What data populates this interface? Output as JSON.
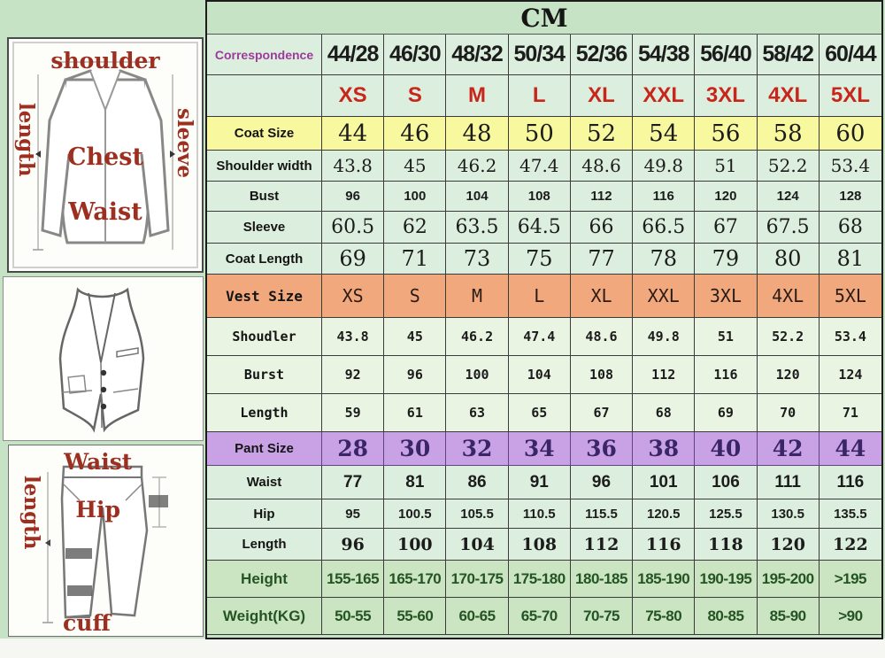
{
  "diagrams": {
    "jacket": {
      "labels": {
        "shoulder": "shoulder",
        "length": "length",
        "sleeve": "sleeve",
        "chest": "Chest",
        "waist": "Waist"
      }
    },
    "vest": {
      "labels": {}
    },
    "pants": {
      "labels": {
        "waist": "Waist",
        "length": "length",
        "hip": "Hip",
        "cuff": "cuff"
      }
    }
  },
  "colors": {
    "page_green": "#c7e3c5",
    "coat_header_bg": "#f8f89e",
    "vest_header_bg": "#f1a87c",
    "pant_header_bg": "#c9a2e6",
    "body_rows_bg": "#cbe4c1",
    "size_letter_red": "#c8251b",
    "correspondence_purple": "#9c3b9c",
    "diagram_label_red": "#9c2f20",
    "body_text_green": "#245424",
    "pant_size_purple": "#3a2566"
  },
  "chart_data": {
    "type": "table",
    "title": "CM",
    "corner_label": "Correspondence",
    "columns": [
      "44/28",
      "46/30",
      "48/32",
      "50/34",
      "52/36",
      "54/38",
      "56/40",
      "58/42",
      "60/44"
    ],
    "rows": [
      {
        "kind": "columns",
        "label": "Correspondence",
        "values": [
          "44/28",
          "46/30",
          "48/32",
          "50/34",
          "52/36",
          "54/38",
          "56/40",
          "58/42",
          "60/44"
        ]
      },
      {
        "kind": "letters",
        "label": "",
        "values": [
          "XS",
          "S",
          "M",
          "L",
          "XL",
          "XXL",
          "3XL",
          "4XL",
          "5XL"
        ]
      },
      {
        "kind": "coatsize",
        "label": "Coat Size",
        "values": [
          "44",
          "46",
          "48",
          "50",
          "52",
          "54",
          "56",
          "58",
          "60"
        ]
      },
      {
        "kind": "shoulder",
        "label": "Shoulder width",
        "values": [
          "43.8",
          "45",
          "46.2",
          "47.4",
          "48.6",
          "49.8",
          "51",
          "52.2",
          "53.4"
        ]
      },
      {
        "kind": "bust",
        "label": "Bust",
        "values": [
          "96",
          "100",
          "104",
          "108",
          "112",
          "116",
          "120",
          "124",
          "128"
        ]
      },
      {
        "kind": "sleeve",
        "label": "Sleeve",
        "values": [
          "60.5",
          "62",
          "63.5",
          "64.5",
          "66",
          "66.5",
          "67",
          "67.5",
          "68"
        ]
      },
      {
        "kind": "coatlen",
        "label": "Coat Length",
        "values": [
          "69",
          "71",
          "73",
          "75",
          "77",
          "78",
          "79",
          "80",
          "81"
        ]
      },
      {
        "kind": "vestsize",
        "label": "Vest Size",
        "values": [
          "XS",
          "S",
          "M",
          "L",
          "XL",
          "XXL",
          "3XL",
          "4XL",
          "5XL"
        ]
      },
      {
        "kind": "vestrow",
        "label": "Shoudler",
        "values": [
          "43.8",
          "45",
          "46.2",
          "47.4",
          "48.6",
          "49.8",
          "51",
          "52.2",
          "53.4"
        ]
      },
      {
        "kind": "vestrow",
        "label": "Burst",
        "values": [
          "92",
          "96",
          "100",
          "104",
          "108",
          "112",
          "116",
          "120",
          "124"
        ]
      },
      {
        "kind": "vestrow",
        "label": "Length",
        "values": [
          "59",
          "61",
          "63",
          "65",
          "67",
          "68",
          "69",
          "70",
          "71"
        ]
      },
      {
        "kind": "pantsize",
        "label": "Pant Size",
        "values": [
          "28",
          "30",
          "32",
          "34",
          "36",
          "38",
          "40",
          "42",
          "44"
        ]
      },
      {
        "kind": "waist",
        "label": "Waist",
        "values": [
          "77",
          "81",
          "86",
          "91",
          "96",
          "101",
          "106",
          "111",
          "116"
        ]
      },
      {
        "kind": "hip",
        "label": "Hip",
        "values": [
          "95",
          "100.5",
          "105.5",
          "110.5",
          "115.5",
          "120.5",
          "125.5",
          "130.5",
          "135.5"
        ]
      },
      {
        "kind": "pantlen",
        "label": "Length",
        "values": [
          "96",
          "100",
          "104",
          "108",
          "112",
          "116",
          "118",
          "120",
          "122"
        ]
      },
      {
        "kind": "body",
        "label": "Height",
        "values": [
          "155-165",
          "165-170",
          "170-175",
          "175-180",
          "180-185",
          "185-190",
          "190-195",
          "195-200",
          ">195"
        ]
      },
      {
        "kind": "body",
        "label": "Weight(KG)",
        "values": [
          "50-55",
          "55-60",
          "60-65",
          "65-70",
          "70-75",
          "75-80",
          "80-85",
          "85-90",
          ">90"
        ]
      }
    ]
  }
}
